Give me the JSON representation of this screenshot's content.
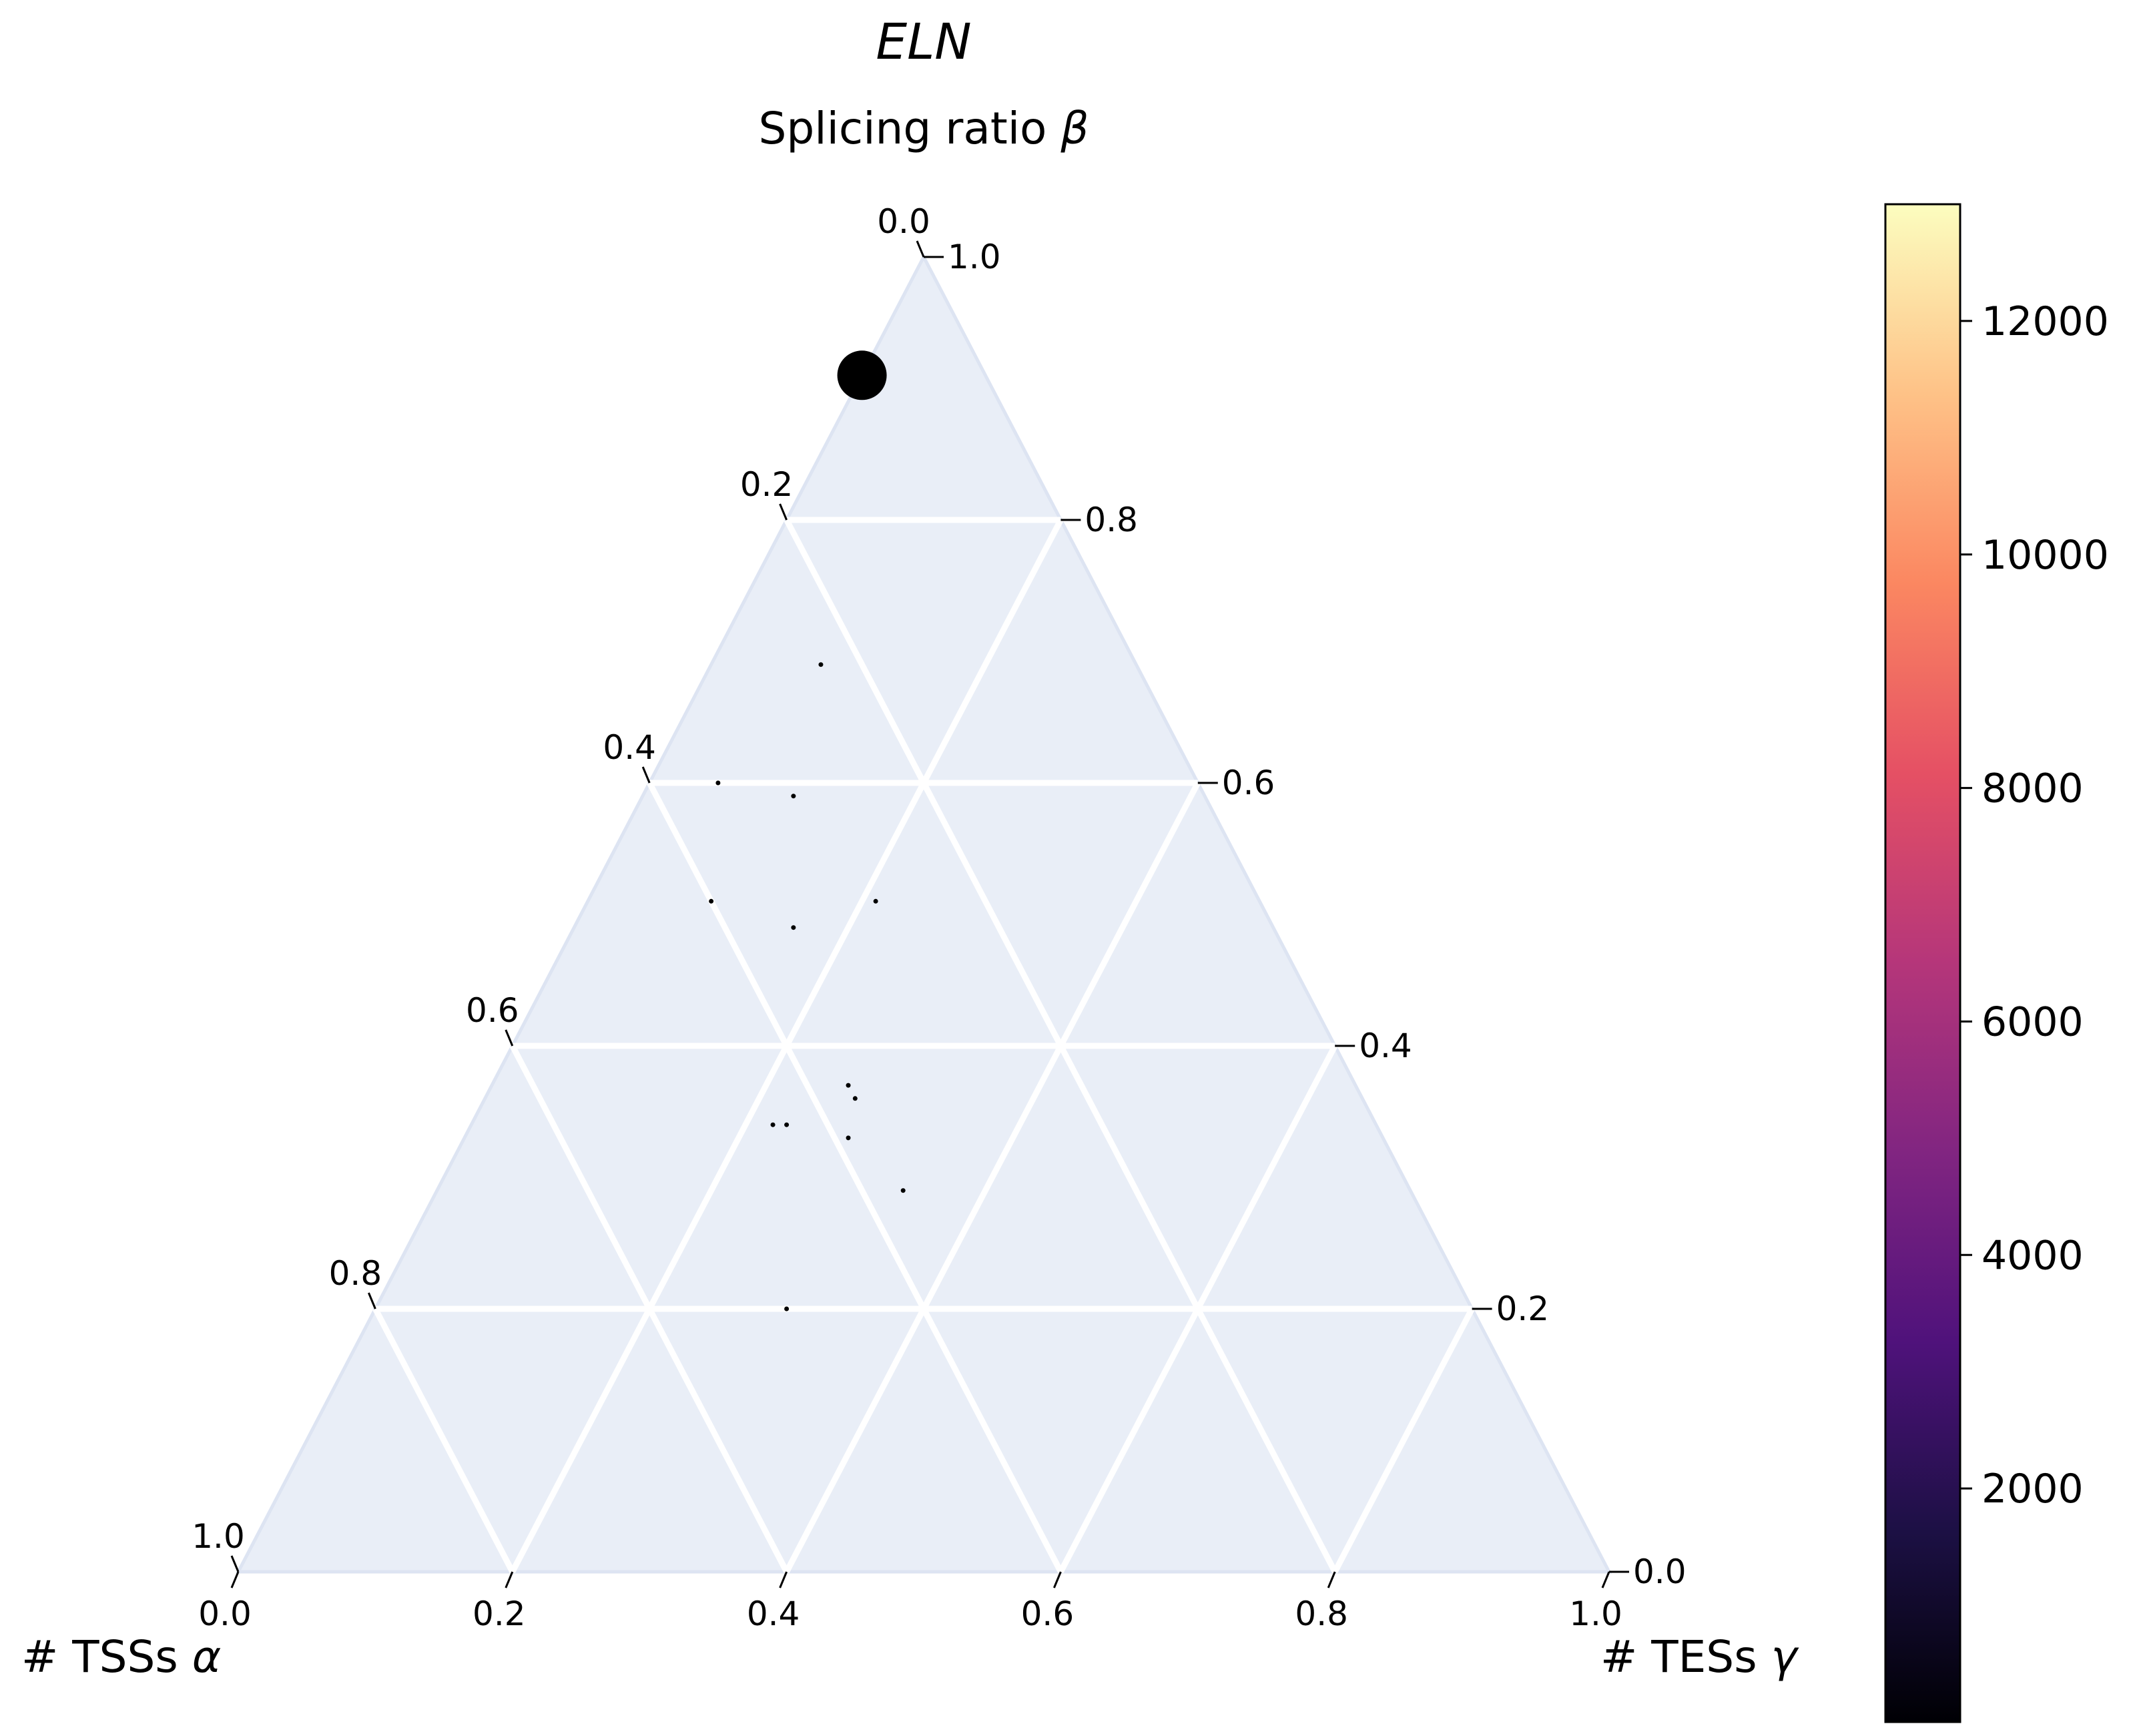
{
  "chart_data": {
    "type": "scatter",
    "subtype": "ternary",
    "title": "ELN",
    "axes": {
      "top": {
        "label_main": "Splicing ratio ",
        "label_symbol": "β"
      },
      "left": {
        "label_main": "# TSSs ",
        "label_symbol": "α"
      },
      "right": {
        "label_main": "# TESs ",
        "label_symbol": "γ"
      }
    },
    "bottom_ticks": [
      "0.0",
      "0.2",
      "0.4",
      "0.6",
      "0.8",
      "1.0"
    ],
    "left_ticks": [
      "0.0",
      "0.2",
      "0.4",
      "0.6",
      "0.8",
      "1.0"
    ],
    "right_ticks": [
      "1.0",
      "0.8",
      "0.6",
      "0.4",
      "0.2",
      "0.0"
    ],
    "grid": true,
    "background_color": "#e9eef7",
    "point_color": "#000000",
    "colorbar": {
      "colormap": "magma",
      "min": 0,
      "max": 13000,
      "ticks": [
        "2000",
        "4000",
        "6000",
        "8000",
        "10000",
        "12000"
      ],
      "stops": [
        "#000004",
        "#1c1044",
        "#4f127b",
        "#812581",
        "#b5367a",
        "#e55064",
        "#fb8761",
        "#fec287",
        "#fcfdbf"
      ]
    },
    "points": [
      {
        "tss": 0.09,
        "splicing": 0.91,
        "tes": 0.0,
        "count": 13000
      },
      {
        "tss": 0.23,
        "splicing": 0.69,
        "tes": 0.08,
        "count": 5
      },
      {
        "tss": 0.3,
        "splicing": 0.59,
        "tes": 0.11,
        "count": 5
      },
      {
        "tss": 0.35,
        "splicing": 0.6,
        "tes": 0.05,
        "count": 2
      },
      {
        "tss": 0.28,
        "splicing": 0.51,
        "tes": 0.21,
        "count": 40
      },
      {
        "tss": 0.4,
        "splicing": 0.51,
        "tes": 0.09,
        "count": 1
      },
      {
        "tss": 0.35,
        "splicing": 0.49,
        "tes": 0.16,
        "count": 2
      },
      {
        "tss": 0.37,
        "splicing": 0.37,
        "tes": 0.26,
        "count": 4
      },
      {
        "tss": 0.37,
        "splicing": 0.36,
        "tes": 0.27,
        "count": 3
      },
      {
        "tss": 0.43,
        "splicing": 0.34,
        "tes": 0.23,
        "count": 3
      },
      {
        "tss": 0.44,
        "splicing": 0.34,
        "tes": 0.22,
        "count": 2
      },
      {
        "tss": 0.39,
        "splicing": 0.33,
        "tes": 0.28,
        "count": 2
      },
      {
        "tss": 0.37,
        "splicing": 0.29,
        "tes": 0.34,
        "count": 2
      },
      {
        "tss": 0.5,
        "splicing": 0.2,
        "tes": 0.3,
        "count": 2
      }
    ]
  }
}
